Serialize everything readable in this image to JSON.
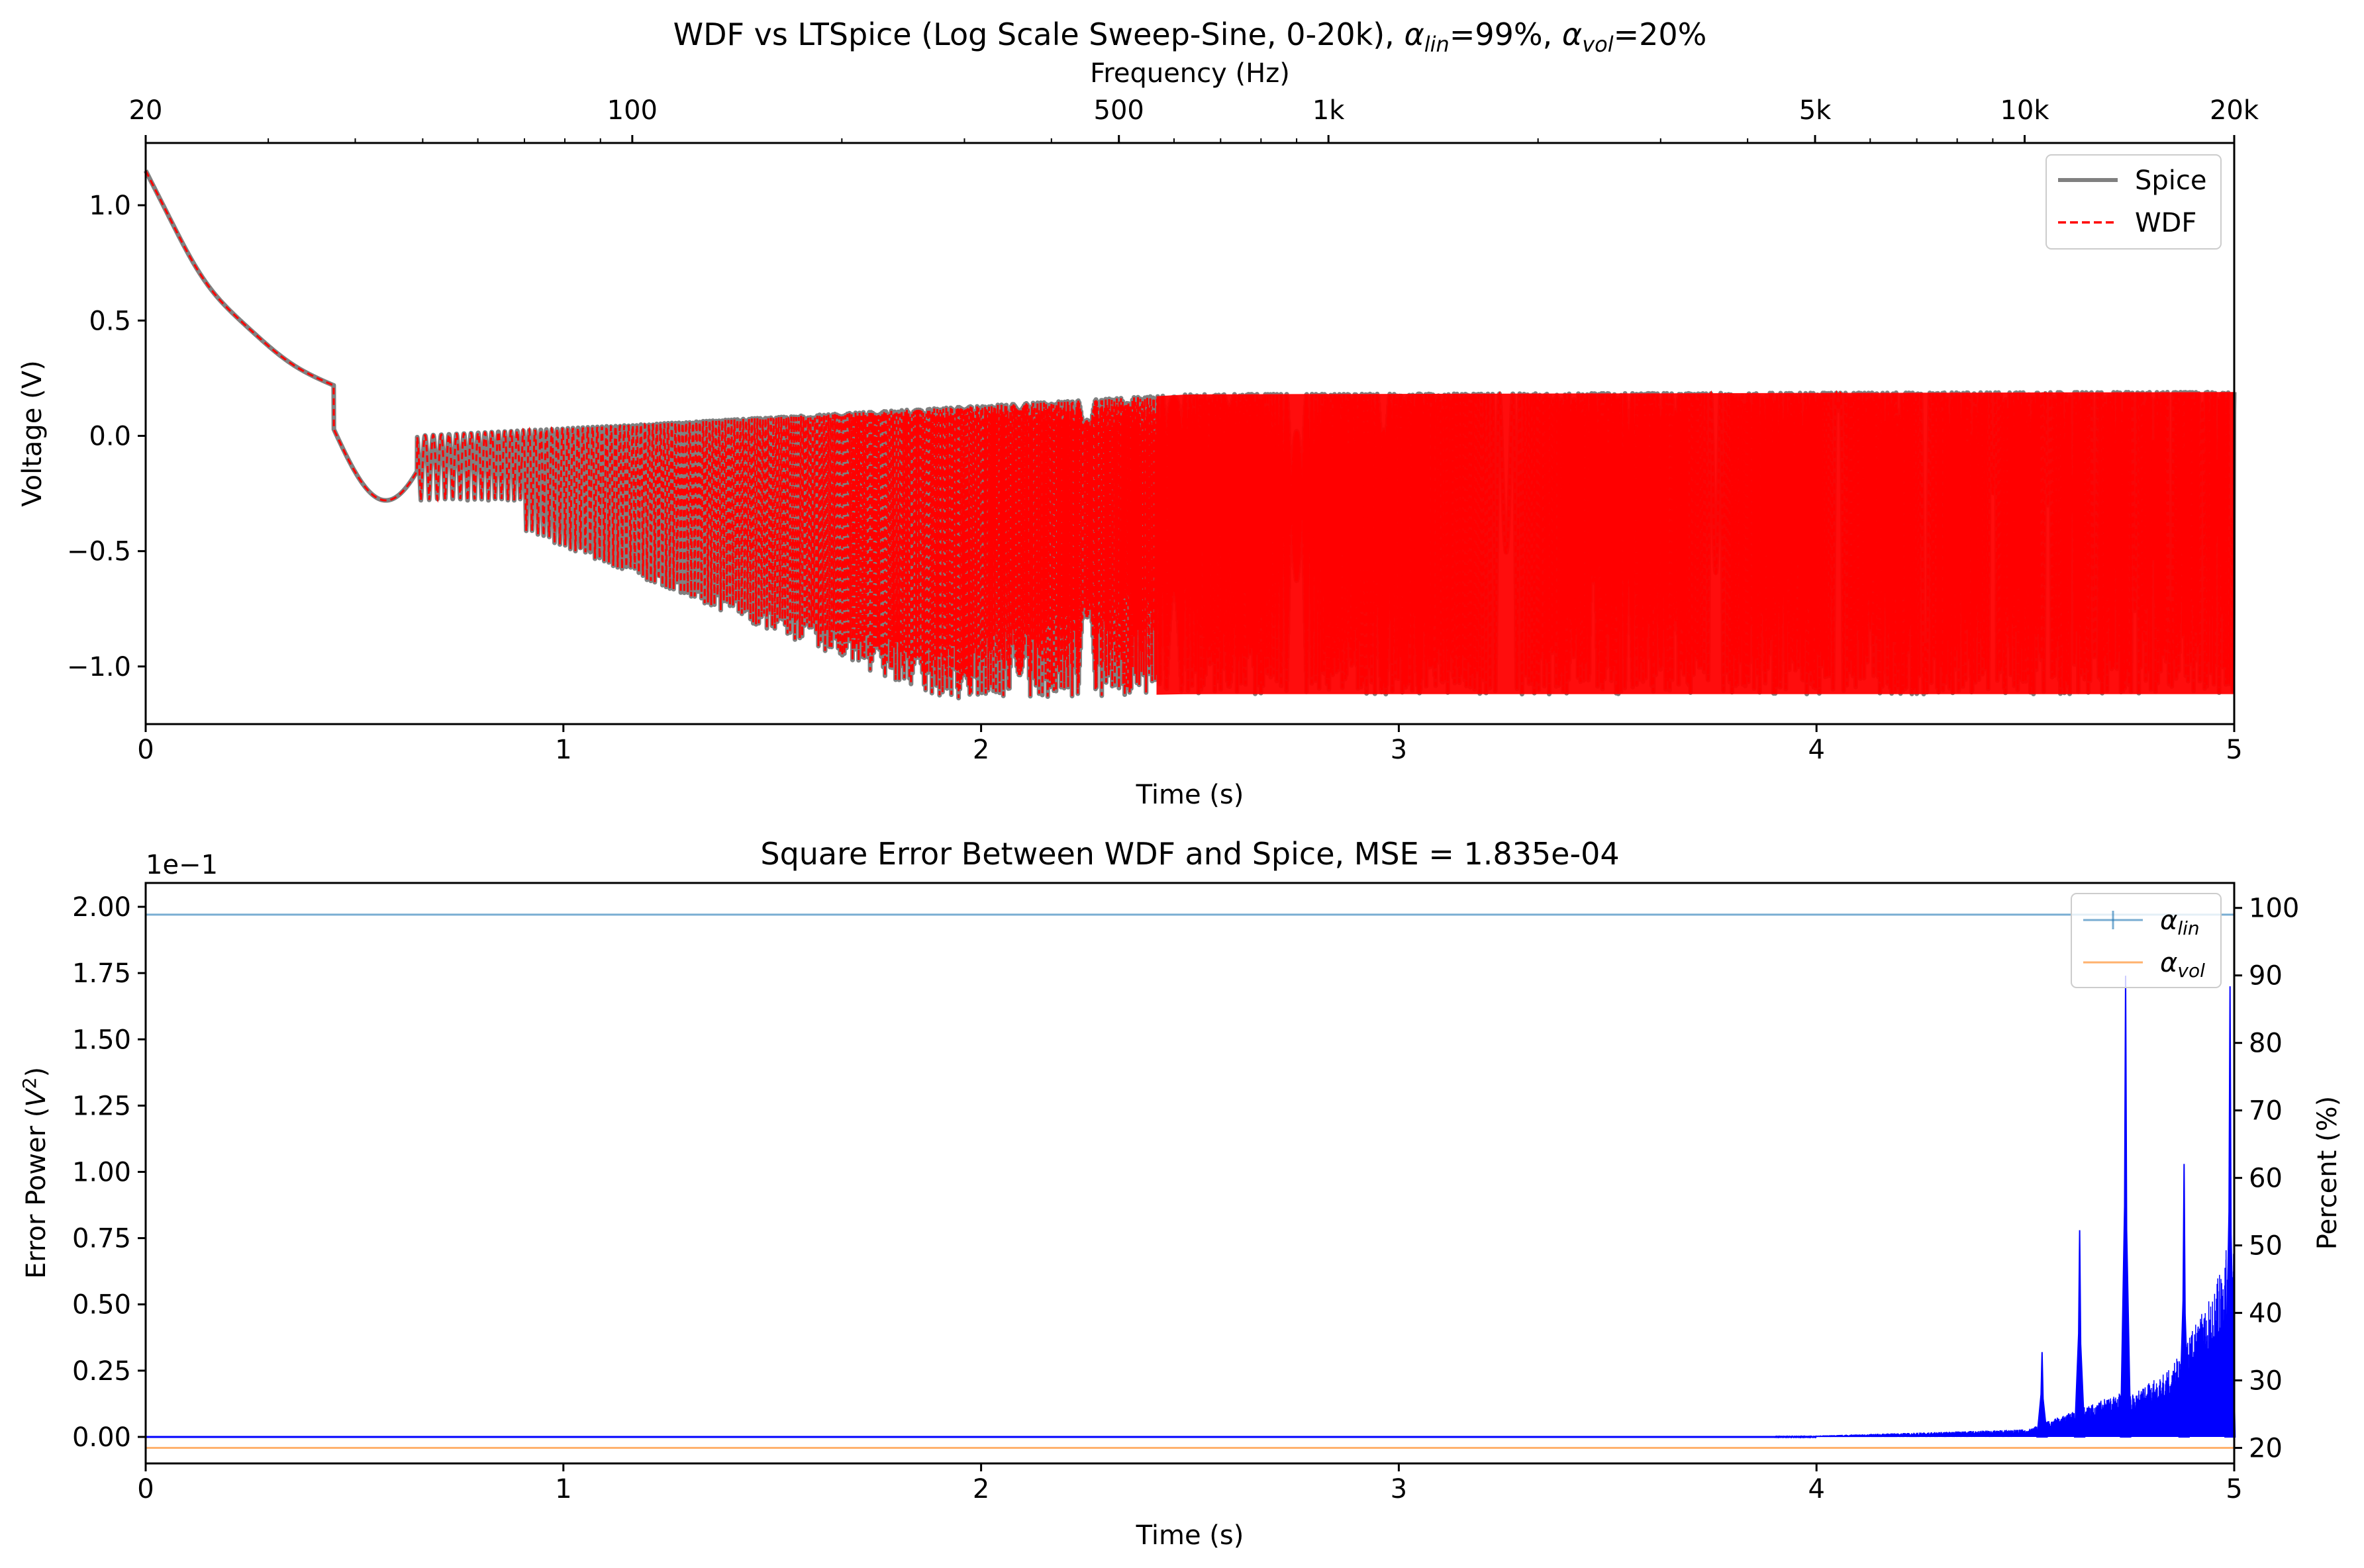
{
  "figure": {
    "top_plot": {
      "title_main": "WDF vs LTSpice (Log Scale Sweep-Sine, 0-20k), ",
      "title_alpha_lin_sym": "α",
      "title_alpha_lin_sub": "lin",
      "title_alpha_lin_val": "=99%, ",
      "title_alpha_vol_sym": "α",
      "title_alpha_vol_sub": "vol",
      "title_alpha_vol_val": "=20%",
      "xlabel": "Time (s)",
      "ylabel": "Voltage (V)",
      "secondary_xlabel": "Frequency (Hz)",
      "x_ticks": [
        "0",
        "1",
        "2",
        "3",
        "4",
        "5"
      ],
      "y_ticks": [
        "−1.0",
        "−0.5",
        "0.0",
        "0.5",
        "1.0"
      ],
      "freq_ticks": [
        "20",
        "100",
        "500",
        "1k",
        "5k",
        "10k",
        "20k"
      ],
      "legend": [
        "Spice",
        "WDF"
      ]
    },
    "bottom_plot": {
      "title": "Square Error Between WDF and Spice, MSE = 1.835e-04",
      "xlabel": "Time (s)",
      "ylabel_main": "Error Power (",
      "ylabel_sym": "V",
      "ylabel_sup": "2",
      "ylabel_end": ")",
      "y2label": "Percent (%)",
      "offset_text": "1e−1",
      "x_ticks": [
        "0",
        "1",
        "2",
        "3",
        "4",
        "5"
      ],
      "y_ticks": [
        "0.00",
        "0.25",
        "0.50",
        "0.75",
        "1.00",
        "1.25",
        "1.50",
        "1.75",
        "2.00"
      ],
      "y2_ticks": [
        "20",
        "30",
        "40",
        "50",
        "60",
        "70",
        "80",
        "90",
        "100"
      ],
      "legend_sym": "α",
      "legend_sub": [
        "lin",
        "vol"
      ]
    },
    "colors": {
      "spice": "#808080",
      "wdf": "#ff0000",
      "error": "#0000ff",
      "alpha_lin": "#1f77b4",
      "alpha_vol": "#ff7f0e"
    }
  },
  "chart_data": [
    {
      "type": "line",
      "title": "WDF vs LTSpice (Log Scale Sweep-Sine, 0-20k), αlin=99%, αvol=20%",
      "xlabel": "Time (s)",
      "ylabel": "Voltage (V)",
      "secondary_xlabel": "Frequency (Hz)",
      "xlim": [
        0,
        5
      ],
      "ylim": [
        -1.25,
        1.27
      ],
      "secondary_x_ticks": [
        "20",
        "100",
        "500",
        "1k",
        "5k",
        "10k",
        "20k"
      ],
      "secondary_x_scale": "log",
      "secondary_x_range_hz": [
        20,
        20000
      ],
      "legend_position": "top-right",
      "series": [
        {
          "name": "Spice",
          "style": "solid",
          "color": "#808080",
          "envelope_points": [
            [
              0,
              1.15
            ],
            [
              0.2,
              0.4
            ],
            [
              0.45,
              0.03
            ],
            [
              0.55,
              -0.28
            ],
            [
              1.0,
              -0.48
            ],
            [
              1.5,
              -0.95
            ],
            [
              1.9,
              -1.14
            ],
            [
              2.5,
              -1.12
            ],
            [
              5,
              -1.13
            ]
          ],
          "upper_envelope": [
            [
              0.65,
              0.0
            ],
            [
              1.2,
              0.05
            ],
            [
              1.8,
              0.14
            ],
            [
              2.5,
              0.18
            ],
            [
              5,
              0.19
            ]
          ]
        },
        {
          "name": "WDF",
          "style": "dashed",
          "color": "#ff0000",
          "envelope_points": [
            [
              0,
              1.15
            ],
            [
              0.2,
              0.4
            ],
            [
              0.45,
              0.03
            ],
            [
              0.55,
              -0.28
            ],
            [
              1.0,
              -0.48
            ],
            [
              1.5,
              -0.95
            ],
            [
              1.9,
              -1.14
            ],
            [
              2.5,
              -1.12
            ],
            [
              5,
              -1.12
            ]
          ],
          "upper_envelope": [
            [
              0.65,
              0.0
            ],
            [
              1.2,
              0.05
            ],
            [
              1.8,
              0.14
            ],
            [
              2.5,
              0.18
            ],
            [
              5,
              0.19
            ]
          ]
        }
      ]
    },
    {
      "type": "line",
      "title": "Square Error Between WDF and Spice, MSE = 1.835e-04",
      "xlabel": "Time (s)",
      "ylabel": "Error Power (V²)",
      "y2label": "Percent (%)",
      "y_scale_factor": "1e−1",
      "xlim": [
        0,
        5
      ],
      "ylim": [
        -0.1,
        2.09
      ],
      "y2lim": [
        17.7,
        103.7
      ],
      "legend_position": "top-right",
      "series": [
        {
          "name": "Square error",
          "color": "#0000ff",
          "axis": "left",
          "points": [
            [
              0,
              0.0
            ],
            [
              4.0,
              0.005
            ],
            [
              4.3,
              0.01
            ],
            [
              4.5,
              0.02
            ],
            [
              4.54,
              0.32
            ],
            [
              4.56,
              0.03
            ],
            [
              4.63,
              0.78
            ],
            [
              4.66,
              0.08
            ],
            [
              4.74,
              1.74
            ],
            [
              4.77,
              0.15
            ],
            [
              4.88,
              1.03
            ],
            [
              4.92,
              0.35
            ],
            [
              4.99,
              1.7
            ],
            [
              5.0,
              0.6
            ]
          ]
        },
        {
          "name": "αlin",
          "color": "#1f77b4",
          "axis": "right",
          "points": [
            [
              0,
              99
            ],
            [
              5,
              99
            ]
          ]
        },
        {
          "name": "αvol",
          "color": "#ff7f0e",
          "axis": "right",
          "points": [
            [
              0,
              20
            ],
            [
              5,
              20
            ]
          ]
        }
      ]
    }
  ]
}
